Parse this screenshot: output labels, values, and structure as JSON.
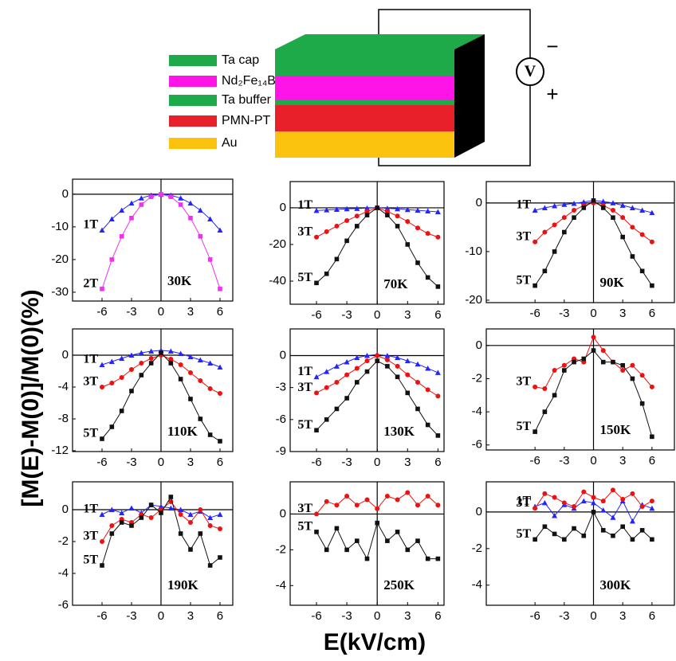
{
  "schematic": {
    "layers": [
      {
        "label": "Ta cap",
        "color": "#1faa4a"
      },
      {
        "label": "Nd₂Fe₁₄B",
        "color": "#ff14e8"
      },
      {
        "label": "Ta buffer",
        "color": "#1faa4a"
      },
      {
        "label": "PMN-PT",
        "color": "#e8202a"
      },
      {
        "label": "Au",
        "color": "#fcc30e"
      }
    ],
    "meter": "V",
    "minus": "−",
    "plus": "+"
  },
  "ylabel": "[M(E)-M(0)]/M(0)(%)",
  "xlabel": "E(kV/cm)",
  "chart_data": [
    {
      "type": "line",
      "annotation": "30K",
      "x": [
        -6,
        -5,
        -4,
        -3,
        -2,
        -1,
        0,
        1,
        2,
        3,
        4,
        5,
        6
      ],
      "xlim": [
        -9,
        7.3
      ],
      "xticks": [
        -6,
        -3,
        0,
        3,
        6
      ],
      "ylim": [
        -32.7,
        4.6
      ],
      "yticks": [
        0,
        -10,
        -20,
        -30
      ],
      "series": [
        {
          "name": "1T",
          "color": "#2424ff",
          "marker": "triangle",
          "values": [
            -11,
            -7.6,
            -4.9,
            -2.75,
            -1.2,
            -0.3,
            0,
            -0.3,
            -1.2,
            -2.75,
            -4.9,
            -7.6,
            -11
          ]
        },
        {
          "name": "2T",
          "color": "#ee33ee",
          "marker": "square",
          "values": [
            -29,
            -20,
            -12.9,
            -7.3,
            -3.2,
            -0.8,
            0,
            -0.8,
            -3.2,
            -7.3,
            -12.9,
            -20,
            -29
          ]
        }
      ]
    },
    {
      "type": "line",
      "annotation": "70K",
      "x": [
        -6,
        -5,
        -4,
        -3,
        -2,
        -1,
        0,
        1,
        2,
        3,
        4,
        5,
        6
      ],
      "xlim": [
        -8.6,
        6.6
      ],
      "xticks": [
        -6,
        -3,
        0,
        3,
        6
      ],
      "ylim": [
        -52.6,
        14.3
      ],
      "yticks": [
        0,
        -20,
        -40
      ],
      "series": [
        {
          "name": "1T",
          "color": "#2424ff",
          "marker": "triangle",
          "values": [
            -1.5,
            -1.2,
            -0.9,
            -0.6,
            -0.4,
            -0.2,
            0,
            -0.3,
            -0.6,
            -1,
            -1.4,
            -1.8,
            -2.2
          ]
        },
        {
          "name": "3T",
          "color": "#ee1111",
          "marker": "circle",
          "values": [
            -16,
            -13,
            -10,
            -7,
            -4.5,
            -2,
            0,
            -2,
            -4.5,
            -7.5,
            -11,
            -14,
            -16
          ]
        },
        {
          "name": "5T",
          "color": "#111111",
          "marker": "square",
          "values": [
            -41,
            -36,
            -28,
            -18,
            -10,
            -4,
            0,
            -4,
            -10,
            -20,
            -30,
            -38,
            -43
          ]
        }
      ]
    },
    {
      "type": "line",
      "annotation": "90K",
      "x": [
        -6,
        -5,
        -4,
        -3,
        -2,
        -1,
        0,
        1,
        2,
        3,
        4,
        5,
        6
      ],
      "xlim": [
        -11,
        8.3
      ],
      "xticks": [
        -6,
        -3,
        0,
        3,
        6
      ],
      "ylim": [
        -20.5,
        4.4
      ],
      "yticks": [
        0,
        -10,
        -20
      ],
      "series": [
        {
          "name": "1T",
          "color": "#2424ff",
          "marker": "triangle",
          "values": [
            -1.5,
            -1,
            -0.6,
            -0.3,
            -0.1,
            0.2,
            0.5,
            0.3,
            0,
            -0.5,
            -1,
            -1.5,
            -2
          ]
        },
        {
          "name": "3T",
          "color": "#ee1111",
          "marker": "circle",
          "values": [
            -8,
            -6,
            -4.5,
            -3,
            -1.5,
            -0.5,
            0,
            -0.5,
            -1.5,
            -3,
            -5,
            -6.5,
            -8
          ]
        },
        {
          "name": "5T",
          "color": "#111111",
          "marker": "square",
          "values": [
            -17,
            -14,
            -10,
            -6,
            -3,
            -1,
            0.5,
            -1,
            -3,
            -7,
            -11,
            -14,
            -17
          ]
        }
      ]
    },
    {
      "type": "line",
      "annotation": "110K",
      "x": [
        -6,
        -5,
        -4,
        -3,
        -2,
        -1,
        0,
        1,
        2,
        3,
        4,
        5,
        6
      ],
      "xlim": [
        -9,
        7.3
      ],
      "xticks": [
        -6,
        -3,
        0,
        3,
        6
      ],
      "ylim": [
        -12.1,
        3.3
      ],
      "yticks": [
        0,
        -4,
        -8,
        -12
      ],
      "series": [
        {
          "name": "1T",
          "color": "#2424ff",
          "marker": "triangle",
          "values": [
            -1.2,
            -0.8,
            -0.4,
            0,
            0.3,
            0.5,
            0.6,
            0.5,
            0.2,
            -0.2,
            -0.6,
            -1,
            -1.5
          ]
        },
        {
          "name": "3T",
          "color": "#ee1111",
          "marker": "circle",
          "values": [
            -4,
            -3.5,
            -2.8,
            -1.8,
            -1,
            -0.4,
            0,
            -0.5,
            -1.2,
            -2.2,
            -3.2,
            -4.2,
            -4.8
          ]
        },
        {
          "name": "5T",
          "color": "#111111",
          "marker": "square",
          "values": [
            -10.5,
            -9,
            -7,
            -4.5,
            -2.5,
            -1,
            0.3,
            -1,
            -3,
            -5.5,
            -8,
            -10,
            -10.8
          ]
        }
      ]
    },
    {
      "type": "line",
      "annotation": "130K",
      "x": [
        -6,
        -5,
        -4,
        -3,
        -2,
        -1,
        0,
        1,
        2,
        3,
        4,
        5,
        6
      ],
      "xlim": [
        -8.6,
        6.6
      ],
      "xticks": [
        -6,
        -3,
        0,
        3,
        6
      ],
      "ylim": [
        -9,
        2.5
      ],
      "yticks": [
        0,
        -3,
        -6,
        -9
      ],
      "series": [
        {
          "name": "1T",
          "color": "#2424ff",
          "marker": "triangle",
          "values": [
            -2,
            -1.5,
            -1,
            -0.6,
            -0.2,
            0,
            0.1,
            0,
            -0.2,
            -0.5,
            -0.8,
            -1.2,
            -1.6
          ]
        },
        {
          "name": "3T",
          "color": "#ee1111",
          "marker": "circle",
          "values": [
            -3.5,
            -3,
            -2.5,
            -1.8,
            -1.2,
            -0.5,
            0,
            -0.4,
            -1,
            -1.8,
            -2.5,
            -3.2,
            -3.8
          ]
        },
        {
          "name": "5T",
          "color": "#111111",
          "marker": "square",
          "values": [
            -7,
            -6,
            -5,
            -4,
            -2.5,
            -1.5,
            -0.5,
            -1,
            -2,
            -3.5,
            -5,
            -6.5,
            -7.5
          ]
        }
      ]
    },
    {
      "type": "line",
      "annotation": "150K",
      "x": [
        -6,
        -5,
        -4,
        -3,
        -2,
        -1,
        0,
        1,
        2,
        3,
        4,
        5,
        6
      ],
      "xlim": [
        -11,
        8.3
      ],
      "xticks": [
        -6,
        -3,
        0,
        3,
        6
      ],
      "ylim": [
        -6.3,
        1
      ],
      "yticks": [
        0,
        -2,
        -4,
        -6
      ],
      "series": [
        {
          "name": "3T",
          "color": "#ee1111",
          "marker": "circle",
          "values": [
            -2.5,
            -2.6,
            -1.5,
            -1.2,
            -0.8,
            -1,
            0.5,
            -0.3,
            -1,
            -1.5,
            -1.2,
            -1.8,
            -2.5
          ]
        },
        {
          "name": "5T",
          "color": "#111111",
          "marker": "square",
          "values": [
            -5.2,
            -4,
            -3,
            -1.5,
            -1,
            -0.8,
            -0.3,
            -1,
            -1,
            -1.2,
            -2,
            -3.5,
            -5.5
          ]
        }
      ]
    },
    {
      "type": "line",
      "annotation": "190K",
      "x": [
        -6,
        -5,
        -4,
        -3,
        -2,
        -1,
        0,
        1,
        2,
        3,
        4,
        5,
        6
      ],
      "xlim": [
        -9,
        7.3
      ],
      "xticks": [
        -6,
        -3,
        0,
        3,
        6
      ],
      "ylim": [
        -6,
        1.75
      ],
      "yticks": [
        0,
        -2,
        -4,
        -6
      ],
      "series": [
        {
          "name": "1T",
          "color": "#2424ff",
          "marker": "triangle",
          "values": [
            -0.3,
            0,
            -0.2,
            0.1,
            -0.2,
            0.3,
            0.2,
            0.1,
            0,
            -0.3,
            -0.1,
            -0.5,
            -0.3
          ]
        },
        {
          "name": "3T",
          "color": "#ee1111",
          "marker": "circle",
          "values": [
            -2,
            -1,
            -0.6,
            -0.8,
            -0.3,
            -0.5,
            0,
            0.5,
            -0.3,
            -0.8,
            0,
            -1,
            -1.2
          ]
        },
        {
          "name": "5T",
          "color": "#111111",
          "marker": "square",
          "values": [
            -3.5,
            -1.5,
            -0.8,
            -1,
            -0.5,
            0.3,
            -0.2,
            0.8,
            -1.5,
            -2.5,
            -1.5,
            -3.5,
            -3
          ]
        }
      ]
    },
    {
      "type": "line",
      "annotation": "250K",
      "x": [
        -6,
        -5,
        -4,
        -3,
        -2,
        -1,
        0,
        1,
        2,
        3,
        4,
        5,
        6
      ],
      "xlim": [
        -8.6,
        6.6
      ],
      "xticks": [
        -6,
        -3,
        0,
        3,
        6
      ],
      "ylim": [
        -5.1,
        1.8
      ],
      "yticks": [
        0,
        -2,
        -4
      ],
      "series": [
        {
          "name": "3T",
          "color": "#ee1111",
          "marker": "circle",
          "values": [
            0,
            0.7,
            0.5,
            1,
            0.5,
            0.8,
            0.3,
            1,
            0.8,
            1.2,
            0.5,
            1,
            0.5
          ]
        },
        {
          "name": "5T",
          "color": "#111111",
          "marker": "square",
          "values": [
            -1,
            -2,
            -0.8,
            -2,
            -1.5,
            -2.5,
            -0.5,
            -1.5,
            -1,
            -2,
            -1.5,
            -2.5,
            -2.5
          ]
        }
      ]
    },
    {
      "type": "line",
      "annotation": "300K",
      "x": [
        -6,
        -5,
        -4,
        -3,
        -2,
        -1,
        0,
        1,
        2,
        3,
        4,
        5,
        6
      ],
      "xlim": [
        -11,
        8.3
      ],
      "xticks": [
        -6,
        -3,
        0,
        3,
        6
      ],
      "ylim": [
        -5.1,
        1.65
      ],
      "yticks": [
        0,
        -2,
        -4
      ],
      "series": [
        {
          "name": "1T",
          "color": "#2424ff",
          "marker": "triangle",
          "values": [
            0.3,
            0.5,
            -0.2,
            0.4,
            0.2,
            0.6,
            0.5,
            0.1,
            -0.3,
            0.6,
            -0.5,
            0.4,
            0.2
          ]
        },
        {
          "name": "3T",
          "color": "#ee1111",
          "marker": "circle",
          "values": [
            0.2,
            1,
            0.8,
            0.5,
            0.3,
            1.1,
            0.8,
            0.6,
            1.2,
            0.7,
            1,
            0.3,
            0.6
          ]
        },
        {
          "name": "5T",
          "color": "#111111",
          "marker": "square",
          "values": [
            -1.5,
            -0.8,
            -1.2,
            -1.5,
            -0.9,
            -1.3,
            0,
            -1,
            -1.3,
            -0.8,
            -1.5,
            -1,
            -1.5
          ]
        }
      ]
    }
  ]
}
